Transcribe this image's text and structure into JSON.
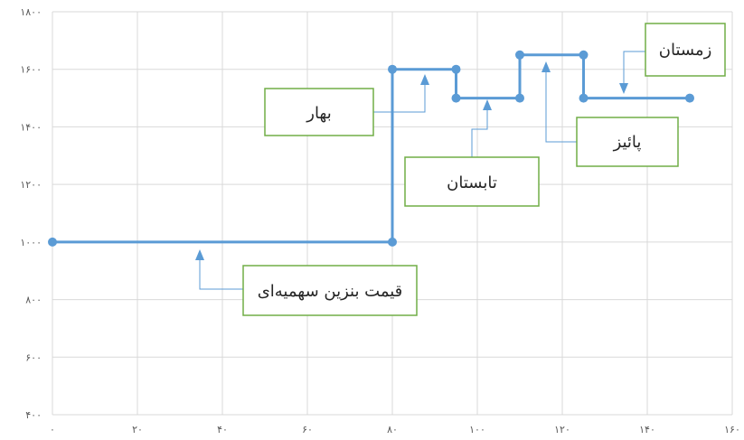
{
  "chart_data": {
    "type": "line",
    "subtype": "step",
    "xlim": [
      0,
      160
    ],
    "ylim": [
      400,
      1800
    ],
    "x_ticks": [
      0,
      20,
      40,
      60,
      80,
      100,
      120,
      140,
      160
    ],
    "y_ticks": [
      400,
      600,
      800,
      1000,
      1200,
      1400,
      1600,
      1800
    ],
    "x_tick_labels": [
      "۰",
      "۲۰",
      "۴۰",
      "۶۰",
      "۸۰",
      "۱۰۰",
      "۱۲۰",
      "۱۴۰",
      "۱۶۰"
    ],
    "y_tick_labels": [
      "۴۰۰",
      "۶۰۰",
      "۸۰۰",
      "۱۰۰۰",
      "۱۲۰۰",
      "۱۴۰۰",
      "۱۶۰۰",
      "۱۸۰۰"
    ],
    "grid": true,
    "color": "#5b9bd5",
    "callout_border_color": "#70ad47",
    "points": [
      {
        "x": 0,
        "y": 1000
      },
      {
        "x": 80,
        "y": 1000
      },
      {
        "x": 80,
        "y": 1600
      },
      {
        "x": 95,
        "y": 1600
      },
      {
        "x": 95,
        "y": 1500
      },
      {
        "x": 110,
        "y": 1500
      },
      {
        "x": 110,
        "y": 1650
      },
      {
        "x": 125,
        "y": 1650
      },
      {
        "x": 125,
        "y": 1500
      },
      {
        "x": 150,
        "y": 1500
      }
    ],
    "annotations": [
      {
        "id": "quota",
        "text": "قیمت بنزین سهمیه‌ای",
        "target": {
          "x": 35,
          "y": 1000
        }
      },
      {
        "id": "spring",
        "text": "بهار",
        "target": {
          "x": 87,
          "y": 1600
        }
      },
      {
        "id": "summer",
        "text": "تابستان",
        "target": {
          "x": 102,
          "y": 1500
        }
      },
      {
        "id": "autumn",
        "text": "پائیز",
        "target": {
          "x": 116,
          "y": 1650
        }
      },
      {
        "id": "winter",
        "text": "زمستان",
        "target": {
          "x": 135,
          "y": 1500
        }
      }
    ]
  }
}
